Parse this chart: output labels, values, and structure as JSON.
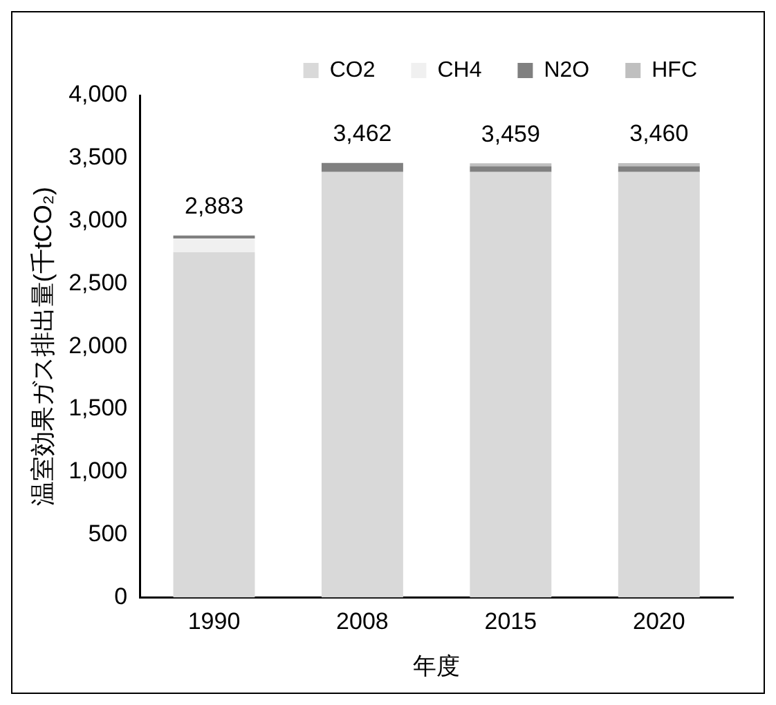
{
  "chart_data": {
    "type": "bar",
    "stacked": true,
    "xlabel": "年度",
    "ylabel": "温室効果ガス排出量(千tCO₂)",
    "categories": [
      "1990",
      "2008",
      "2015",
      "2020"
    ],
    "series": [
      {
        "name": "CO2",
        "color": "#d9d9d9",
        "values": [
          2750,
          3390,
          3390,
          3390
        ]
      },
      {
        "name": "CH4",
        "color": "#f0f0f0",
        "values": [
          110,
          null,
          null,
          null
        ]
      },
      {
        "name": "N2O",
        "color": "#808080",
        "values": [
          23,
          72,
          45,
          45
        ]
      },
      {
        "name": "HFC",
        "color": "#bfbfbf",
        "values": [
          null,
          null,
          24,
          25
        ]
      }
    ],
    "totals": [
      "2,883",
      "3,462",
      "3,459",
      "3,460"
    ],
    "ylim": [
      0,
      4000
    ],
    "yticks": [
      {
        "value": 0,
        "label": "0"
      },
      {
        "value": 500,
        "label": "500"
      },
      {
        "value": 1000,
        "label": "1,000"
      },
      {
        "value": 1500,
        "label": "1,500"
      },
      {
        "value": 2000,
        "label": "2,000"
      },
      {
        "value": 2500,
        "label": "2,500"
      },
      {
        "value": 3000,
        "label": "3,000"
      },
      {
        "value": 3500,
        "label": "3,500"
      },
      {
        "value": 4000,
        "label": "4,000"
      }
    ],
    "grid": false,
    "legend": "top right"
  }
}
